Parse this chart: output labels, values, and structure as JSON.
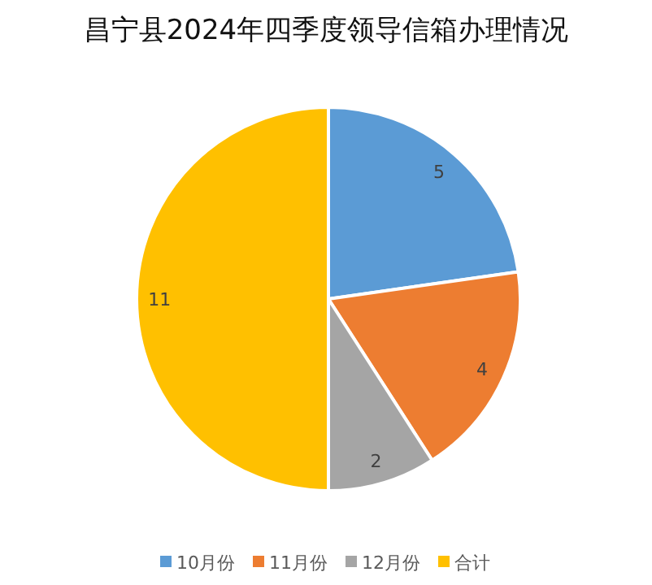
{
  "chart_data": {
    "type": "pie",
    "title": "昌宁县2024年四季度领导信箱办理情况",
    "categories": [
      "10月份",
      "11月份",
      "12月份",
      "合计"
    ],
    "values": [
      5,
      4,
      2,
      11
    ],
    "colors": [
      "#5b9bd5",
      "#ed7d31",
      "#a5a5a5",
      "#ffc000"
    ],
    "data_labels": true,
    "legend": "bottom"
  }
}
